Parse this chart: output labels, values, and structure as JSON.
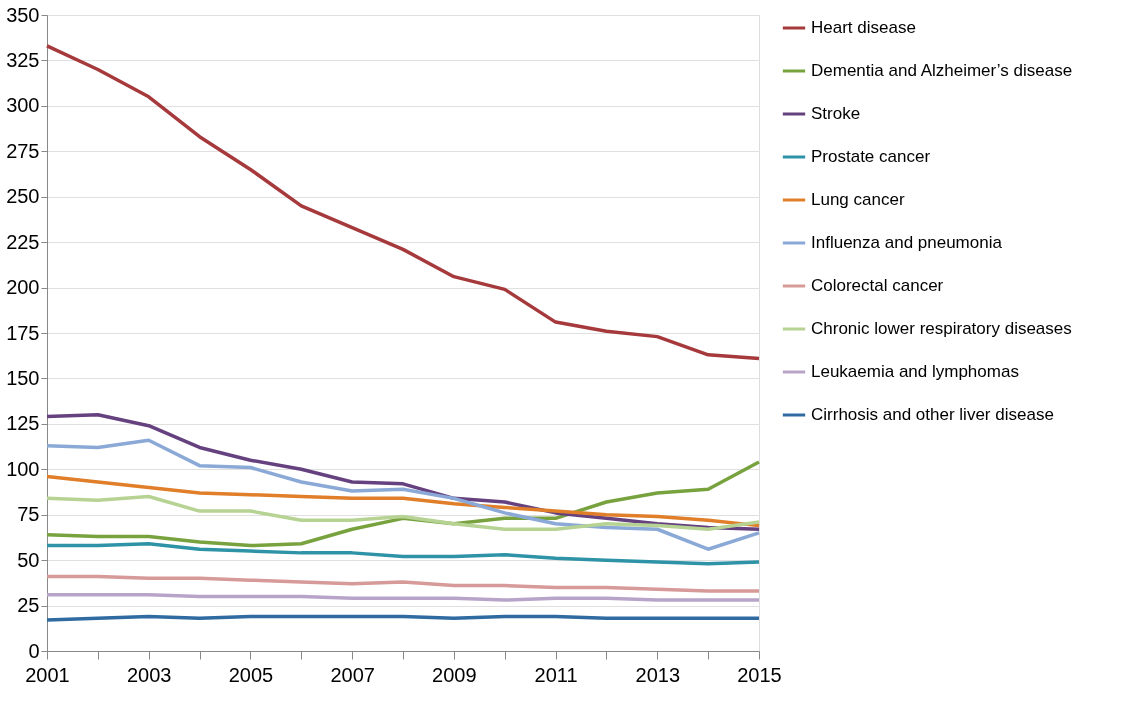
{
  "chart_data": {
    "type": "line",
    "x": [
      2001,
      2002,
      2003,
      2004,
      2005,
      2006,
      2007,
      2008,
      2009,
      2010,
      2011,
      2012,
      2013,
      2014,
      2015
    ],
    "series": [
      {
        "name": "Heart disease",
        "color": "#a6393b",
        "values": [
          333,
          320,
          305,
          283,
          265,
          245,
          233,
          221,
          206,
          199,
          181,
          176,
          173,
          163,
          161
        ]
      },
      {
        "name": "Dementia and Alzheimer’s disease",
        "color": "#77a23e",
        "values": [
          64,
          63,
          63,
          60,
          58,
          59,
          67,
          73,
          70,
          73,
          73,
          82,
          87,
          89,
          104
        ]
      },
      {
        "name": "Stroke",
        "color": "#65417f",
        "values": [
          129,
          130,
          124,
          112,
          105,
          100,
          93,
          92,
          84,
          82,
          76,
          73,
          70,
          68,
          67
        ]
      },
      {
        "name": "Prostate cancer",
        "color": "#2e93a6",
        "values": [
          58,
          58,
          59,
          56,
          55,
          54,
          54,
          52,
          52,
          53,
          51,
          50,
          49,
          48,
          49
        ]
      },
      {
        "name": "Lung cancer",
        "color": "#e07e2a",
        "values": [
          96,
          93,
          90,
          87,
          86,
          85,
          84,
          84,
          81,
          79,
          77,
          75,
          74,
          72,
          69
        ]
      },
      {
        "name": "Influenza and pneumonia",
        "color": "#8aa9d6",
        "values": [
          113,
          112,
          116,
          102,
          101,
          93,
          88,
          89,
          84,
          76,
          70,
          68,
          67,
          56,
          65
        ]
      },
      {
        "name": "Colorectal cancer",
        "color": "#d69a98",
        "values": [
          41,
          41,
          40,
          40,
          39,
          38,
          37,
          38,
          36,
          36,
          35,
          35,
          34,
          33,
          33
        ]
      },
      {
        "name": "Chronic lower respiratory diseases",
        "color": "#b6d393",
        "values": [
          84,
          83,
          85,
          77,
          77,
          72,
          72,
          74,
          70,
          67,
          67,
          70,
          69,
          67,
          71
        ]
      },
      {
        "name": "Leukaemia and lymphomas",
        "color": "#b8a4c9",
        "values": [
          31,
          31,
          31,
          30,
          30,
          30,
          29,
          29,
          29,
          28,
          29,
          29,
          28,
          28,
          28
        ]
      },
      {
        "name": "Cirrhosis and other liver disease",
        "color": "#2f6aa1",
        "values": [
          17,
          18,
          19,
          18,
          19,
          19,
          19,
          19,
          18,
          19,
          19,
          18,
          18,
          18,
          18
        ]
      }
    ],
    "xlim": [
      2001,
      2015
    ],
    "xticks": [
      2001,
      {
        "value": 2002,
        "label": null
      },
      2003,
      {
        "value": 2004,
        "label": null
      },
      2005,
      {
        "value": 2006,
        "label": null
      },
      2007,
      {
        "value": 2008,
        "label": null
      },
      2009,
      {
        "value": 2010,
        "label": null
      },
      2011,
      {
        "value": 2012,
        "label": null
      },
      2013,
      {
        "value": 2014,
        "label": null
      },
      2015
    ],
    "ylim": [
      0,
      350
    ],
    "yticks": [
      0,
      25,
      50,
      75,
      100,
      125,
      150,
      175,
      200,
      225,
      250,
      275,
      300,
      325,
      350
    ],
    "grid": "y",
    "legend": "right",
    "marker": "none",
    "line_style": "solid"
  }
}
